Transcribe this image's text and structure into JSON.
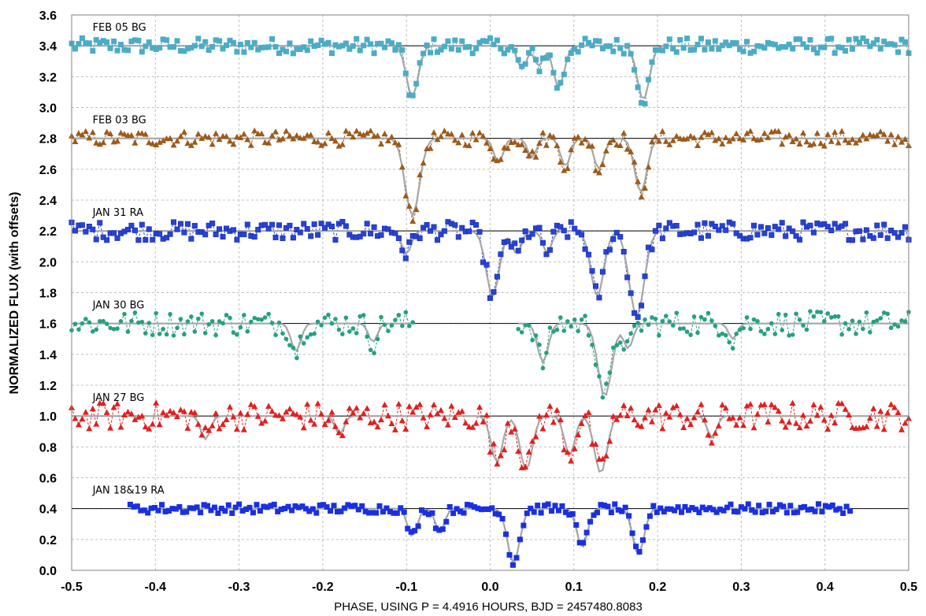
{
  "chart_data": {
    "type": "scatter",
    "title": "",
    "xlabel": "PHASE, USING P = 4.4916 HOURS, BJD = 2457480.8083",
    "ylabel": "NORMALIZED FLUX (with offsets)",
    "xlim": [
      -0.5,
      0.5
    ],
    "ylim": [
      0.0,
      3.6
    ],
    "xticks": [
      "-0.5",
      "-0.4",
      "-0.3",
      "-0.2",
      "-0.1",
      "0.0",
      "0.1",
      "0.2",
      "0.3",
      "0.4",
      "0.5"
    ],
    "yticks": [
      "0.0",
      "0.2",
      "0.4",
      "0.6",
      "0.8",
      "1.0",
      "1.2",
      "1.4",
      "1.6",
      "1.8",
      "2.0",
      "2.2",
      "2.4",
      "2.6",
      "2.8",
      "3.0",
      "3.2",
      "3.4",
      "3.6"
    ],
    "grid": true,
    "legend": "none",
    "series": [
      {
        "name": "FEB 05 BG",
        "baseline": 3.4,
        "color": "#4bacc6",
        "marker": "square",
        "x_range": [
          -0.5,
          0.5
        ],
        "dips": [
          [
            -0.093,
            0.33
          ],
          [
            0.038,
            0.15
          ],
          [
            0.058,
            0.13
          ],
          [
            0.082,
            0.27
          ],
          [
            0.183,
            0.35
          ]
        ],
        "noise": 0.05
      },
      {
        "name": "FEB 03 BG",
        "baseline": 2.8,
        "color": "#9c5a1a",
        "marker": "triangle",
        "x_range": [
          -0.5,
          0.5
        ],
        "dips": [
          [
            -0.093,
            0.5
          ],
          [
            0.01,
            0.16
          ],
          [
            0.05,
            0.12
          ],
          [
            0.09,
            0.18
          ],
          [
            0.13,
            0.2
          ],
          [
            0.18,
            0.35
          ]
        ],
        "noise": 0.05
      },
      {
        "name": "JAN 31 RA",
        "baseline": 2.2,
        "color": "#2643d9",
        "marker": "square",
        "x_range": [
          -0.5,
          0.5
        ],
        "dips": [
          [
            -0.1,
            0.15
          ],
          [
            0.003,
            0.42
          ],
          [
            0.032,
            0.15
          ],
          [
            0.068,
            0.14
          ],
          [
            0.128,
            0.42
          ],
          [
            0.175,
            0.55
          ]
        ],
        "noise": 0.06
      },
      {
        "name": "JAN 30 BG",
        "baseline": 1.6,
        "color": "#26a082",
        "marker": "circle",
        "x_range": [
          -0.5,
          0.5
        ],
        "gap": [
          -0.09,
          0.03
        ],
        "dips": [
          [
            -0.232,
            0.18
          ],
          [
            -0.14,
            0.12
          ],
          [
            0.063,
            0.25
          ],
          [
            0.137,
            0.47
          ],
          [
            0.165,
            0.16
          ],
          [
            0.29,
            0.1
          ]
        ],
        "noise": 0.08
      },
      {
        "name": "JAN 27 BG",
        "baseline": 1.0,
        "color": "#e02020",
        "marker": "triangle",
        "x_range": [
          -0.5,
          0.5
        ],
        "dips": [
          [
            -0.34,
            0.15
          ],
          [
            -0.18,
            0.12
          ],
          [
            0.008,
            0.3
          ],
          [
            0.043,
            0.35
          ],
          [
            0.095,
            0.25
          ],
          [
            0.132,
            0.37
          ],
          [
            0.265,
            0.14
          ]
        ],
        "noise": 0.09
      },
      {
        "name": "JAN 18&19 RA",
        "baseline": 0.4,
        "color": "#1a30e0",
        "marker": "square",
        "x_range": [
          -0.43,
          0.43
        ],
        "dips": [
          [
            -0.093,
            0.18
          ],
          [
            -0.06,
            0.15
          ],
          [
            0.028,
            0.35
          ],
          [
            0.11,
            0.25
          ],
          [
            0.177,
            0.3
          ]
        ],
        "noise": 0.03
      }
    ]
  }
}
